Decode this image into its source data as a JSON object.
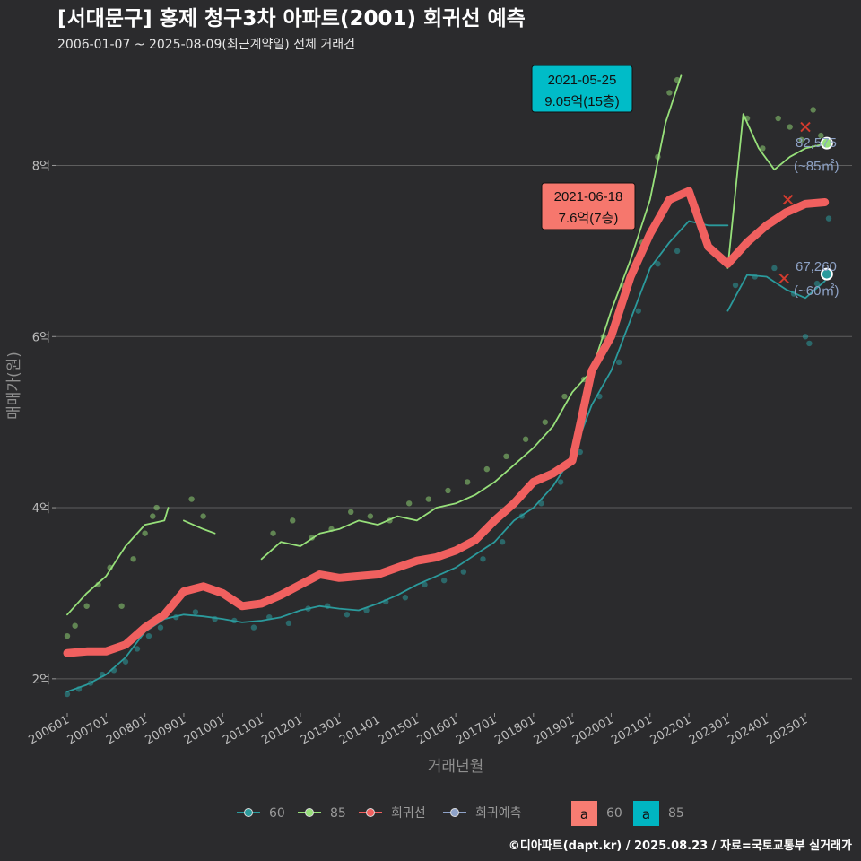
{
  "chart_data": {
    "type": "line",
    "title": "[서대문구] 홍제 청구3차 아파트(2001) 회귀선 예측",
    "subtitle": "2006-01-07 ~ 2025-08-09(최근계약일) 전체 거래건",
    "xlabel": "거래년월",
    "ylabel": "매매가(원)",
    "ylim": [
      1.6,
      9.2
    ],
    "y_ticks": [
      {
        "value": 2,
        "label": "2억"
      },
      {
        "value": 4,
        "label": "4억"
      },
      {
        "value": 6,
        "label": "6억"
      },
      {
        "value": 8,
        "label": "8억"
      }
    ],
    "x_ticks": [
      {
        "year": 2006.0,
        "label": "200601"
      },
      {
        "year": 2007.0,
        "label": "200701"
      },
      {
        "year": 2008.0,
        "label": "200801"
      },
      {
        "year": 2009.0,
        "label": "200901"
      },
      {
        "year": 2010.0,
        "label": "201001"
      },
      {
        "year": 2011.0,
        "label": "201101"
      },
      {
        "year": 2012.0,
        "label": "201201"
      },
      {
        "year": 2013.0,
        "label": "201301"
      },
      {
        "year": 2014.0,
        "label": "201401"
      },
      {
        "year": 2015.0,
        "label": "201501"
      },
      {
        "year": 2016.0,
        "label": "201601"
      },
      {
        "year": 2017.0,
        "label": "201701"
      },
      {
        "year": 2018.0,
        "label": "201801"
      },
      {
        "year": 2019.0,
        "label": "201901"
      },
      {
        "year": 2020.0,
        "label": "202001"
      },
      {
        "year": 2021.0,
        "label": "202101"
      },
      {
        "year": 2022.0,
        "label": "202201"
      },
      {
        "year": 2023.0,
        "label": "202301"
      },
      {
        "year": 2024.0,
        "label": "202401"
      },
      {
        "year": 2025.0,
        "label": "202501"
      }
    ],
    "xlim": [
      2005.7,
      2026.2
    ],
    "colors": {
      "s60": "#2b9a9c",
      "s85": "#97e07a",
      "regression": "#f0605f",
      "forecast": "#8ea2c8",
      "grid": "#5e5e5e"
    },
    "series": [
      {
        "name": "60",
        "key": "s60",
        "points": [
          [
            2006.0,
            1.85
          ],
          [
            2006.5,
            1.93
          ],
          [
            2007.0,
            2.05
          ],
          [
            2007.5,
            2.25
          ],
          [
            2008.0,
            2.55
          ],
          [
            2008.5,
            2.7
          ],
          [
            2009.0,
            2.75
          ],
          [
            2009.5,
            2.73
          ],
          [
            2010.0,
            2.7
          ],
          [
            2010.5,
            2.66
          ],
          [
            2011.0,
            2.68
          ],
          [
            2011.5,
            2.72
          ],
          [
            2012.0,
            2.8
          ],
          [
            2012.5,
            2.85
          ],
          [
            2013.0,
            2.82
          ],
          [
            2013.5,
            2.8
          ],
          [
            2014.0,
            2.88
          ],
          [
            2014.5,
            2.98
          ],
          [
            2015.0,
            3.1
          ],
          [
            2015.5,
            3.2
          ],
          [
            2016.0,
            3.3
          ],
          [
            2016.5,
            3.45
          ],
          [
            2017.0,
            3.6
          ],
          [
            2017.5,
            3.85
          ],
          [
            2018.0,
            4.0
          ],
          [
            2018.5,
            4.25
          ],
          [
            2019.0,
            4.6
          ],
          [
            2019.5,
            5.2
          ],
          [
            2020.0,
            5.6
          ],
          [
            2020.5,
            6.2
          ],
          [
            2021.0,
            6.8
          ],
          [
            2021.5,
            7.1
          ],
          [
            2022.0,
            7.35
          ],
          [
            2022.5,
            7.3
          ],
          [
            2023.0,
            7.3
          ]
        ]
      },
      {
        "name": "60",
        "key": "s60",
        "points": [
          [
            2023.0,
            6.3
          ],
          [
            2023.5,
            6.72
          ],
          [
            2024.0,
            6.7
          ],
          [
            2024.5,
            6.55
          ],
          [
            2025.0,
            6.45
          ],
          [
            2025.5,
            6.65
          ]
        ]
      },
      {
        "name": "85",
        "key": "s85",
        "points": [
          [
            2006.0,
            2.75
          ],
          [
            2006.5,
            3.0
          ],
          [
            2007.0,
            3.2
          ],
          [
            2007.5,
            3.55
          ],
          [
            2008.0,
            3.8
          ],
          [
            2008.5,
            3.85
          ],
          [
            2008.6,
            4.0
          ]
        ]
      },
      {
        "name": "85",
        "key": "s85",
        "points": [
          [
            2009.0,
            3.85
          ],
          [
            2009.5,
            3.75
          ],
          [
            2009.8,
            3.7
          ]
        ]
      },
      {
        "name": "85",
        "key": "s85",
        "points": [
          [
            2011.0,
            3.4
          ],
          [
            2011.5,
            3.6
          ],
          [
            2012.0,
            3.55
          ],
          [
            2012.5,
            3.7
          ],
          [
            2013.0,
            3.75
          ],
          [
            2013.5,
            3.85
          ],
          [
            2014.0,
            3.8
          ],
          [
            2014.5,
            3.9
          ],
          [
            2015.0,
            3.85
          ],
          [
            2015.5,
            4.0
          ],
          [
            2016.0,
            4.05
          ],
          [
            2016.5,
            4.15
          ],
          [
            2017.0,
            4.3
          ],
          [
            2017.5,
            4.5
          ],
          [
            2018.0,
            4.7
          ],
          [
            2018.5,
            4.95
          ],
          [
            2019.0,
            5.35
          ],
          [
            2019.5,
            5.6
          ],
          [
            2020.0,
            6.3
          ],
          [
            2020.5,
            6.9
          ],
          [
            2021.0,
            7.6
          ],
          [
            2021.4,
            8.5
          ],
          [
            2021.8,
            9.05
          ]
        ]
      },
      {
        "name": "85",
        "key": "s85",
        "points": [
          [
            2023.0,
            6.8
          ],
          [
            2023.4,
            8.6
          ],
          [
            2023.8,
            8.2
          ],
          [
            2024.2,
            7.95
          ],
          [
            2024.6,
            8.1
          ],
          [
            2025.0,
            8.2
          ],
          [
            2025.5,
            8.25
          ]
        ]
      },
      {
        "name": "회귀선",
        "key": "regression",
        "points": [
          [
            2006.0,
            2.3
          ],
          [
            2006.5,
            2.32
          ],
          [
            2007.0,
            2.32
          ],
          [
            2007.5,
            2.4
          ],
          [
            2008.0,
            2.6
          ],
          [
            2008.5,
            2.75
          ],
          [
            2009.0,
            3.02
          ],
          [
            2009.5,
            3.08
          ],
          [
            2010.0,
            3.0
          ],
          [
            2010.5,
            2.85
          ],
          [
            2011.0,
            2.88
          ],
          [
            2011.5,
            2.98
          ],
          [
            2012.0,
            3.1
          ],
          [
            2012.5,
            3.22
          ],
          [
            2013.0,
            3.18
          ],
          [
            2013.5,
            3.2
          ],
          [
            2014.0,
            3.22
          ],
          [
            2014.5,
            3.3
          ],
          [
            2015.0,
            3.38
          ],
          [
            2015.5,
            3.42
          ],
          [
            2016.0,
            3.5
          ],
          [
            2016.5,
            3.62
          ],
          [
            2017.0,
            3.85
          ],
          [
            2017.5,
            4.05
          ],
          [
            2018.0,
            4.3
          ],
          [
            2018.5,
            4.4
          ],
          [
            2019.0,
            4.55
          ],
          [
            2019.5,
            5.6
          ],
          [
            2020.0,
            6.0
          ],
          [
            2020.5,
            6.7
          ],
          [
            2021.0,
            7.2
          ],
          [
            2021.5,
            7.6
          ],
          [
            2022.0,
            7.7
          ],
          [
            2022.5,
            7.05
          ],
          [
            2023.0,
            6.85
          ],
          [
            2023.5,
            7.1
          ],
          [
            2024.0,
            7.3
          ],
          [
            2024.5,
            7.45
          ],
          [
            2025.0,
            7.55
          ],
          [
            2025.5,
            7.57
          ]
        ]
      }
    ],
    "scatter_60": [
      [
        2006.0,
        1.82
      ],
      [
        2006.3,
        1.88
      ],
      [
        2006.6,
        1.95
      ],
      [
        2006.9,
        2.05
      ],
      [
        2007.2,
        2.1
      ],
      [
        2007.5,
        2.2
      ],
      [
        2007.8,
        2.35
      ],
      [
        2008.1,
        2.5
      ],
      [
        2008.4,
        2.6
      ],
      [
        2008.8,
        2.72
      ],
      [
        2009.3,
        2.78
      ],
      [
        2009.8,
        2.7
      ],
      [
        2010.3,
        2.68
      ],
      [
        2010.8,
        2.6
      ],
      [
        2011.2,
        2.72
      ],
      [
        2011.7,
        2.65
      ],
      [
        2012.2,
        2.82
      ],
      [
        2012.7,
        2.85
      ],
      [
        2013.2,
        2.75
      ],
      [
        2013.7,
        2.8
      ],
      [
        2014.2,
        2.9
      ],
      [
        2014.7,
        2.95
      ],
      [
        2015.2,
        3.1
      ],
      [
        2015.7,
        3.15
      ],
      [
        2016.2,
        3.25
      ],
      [
        2016.7,
        3.4
      ],
      [
        2017.2,
        3.6
      ],
      [
        2017.7,
        3.9
      ],
      [
        2018.2,
        4.05
      ],
      [
        2018.7,
        4.3
      ],
      [
        2019.2,
        4.65
      ],
      [
        2019.7,
        5.3
      ],
      [
        2020.2,
        5.7
      ],
      [
        2020.7,
        6.3
      ],
      [
        2021.2,
        6.85
      ],
      [
        2021.7,
        7.0
      ],
      [
        2023.2,
        6.6
      ],
      [
        2023.7,
        6.7
      ],
      [
        2024.2,
        6.8
      ],
      [
        2024.7,
        6.5
      ],
      [
        2025.0,
        6.0
      ],
      [
        2025.1,
        5.92
      ],
      [
        2025.3,
        6.62
      ],
      [
        2025.6,
        7.38
      ]
    ],
    "scatter_85": [
      [
        2006.0,
        2.5
      ],
      [
        2006.2,
        2.62
      ],
      [
        2006.5,
        2.85
      ],
      [
        2006.8,
        3.1
      ],
      [
        2007.1,
        3.3
      ],
      [
        2007.4,
        2.85
      ],
      [
        2007.7,
        3.4
      ],
      [
        2008.0,
        3.7
      ],
      [
        2008.2,
        3.9
      ],
      [
        2008.3,
        4.0
      ],
      [
        2009.2,
        4.1
      ],
      [
        2009.5,
        3.9
      ],
      [
        2011.3,
        3.7
      ],
      [
        2011.8,
        3.85
      ],
      [
        2012.3,
        3.65
      ],
      [
        2012.8,
        3.75
      ],
      [
        2013.3,
        3.95
      ],
      [
        2013.8,
        3.9
      ],
      [
        2014.3,
        3.85
      ],
      [
        2014.8,
        4.05
      ],
      [
        2015.3,
        4.1
      ],
      [
        2015.8,
        4.2
      ],
      [
        2016.3,
        4.3
      ],
      [
        2016.8,
        4.45
      ],
      [
        2017.3,
        4.6
      ],
      [
        2017.8,
        4.8
      ],
      [
        2018.3,
        5.0
      ],
      [
        2018.8,
        5.3
      ],
      [
        2019.3,
        5.5
      ],
      [
        2019.8,
        6.0
      ],
      [
        2020.3,
        6.6
      ],
      [
        2020.8,
        7.1
      ],
      [
        2021.2,
        8.1
      ],
      [
        2021.5,
        8.85
      ],
      [
        2021.7,
        9.0
      ],
      [
        2023.5,
        8.55
      ],
      [
        2023.9,
        8.2
      ],
      [
        2024.3,
        8.55
      ],
      [
        2024.6,
        8.45
      ],
      [
        2024.9,
        8.3
      ],
      [
        2025.2,
        8.65
      ],
      [
        2025.4,
        8.35
      ]
    ],
    "annotations": [
      {
        "date": "2021-05-25",
        "price": "9.05억(15층)",
        "series": "85",
        "x": 2021.4,
        "y": 9.05
      },
      {
        "date": "2021-06-18",
        "price": "7.6억(7층)",
        "series": "60",
        "x": 2021.45,
        "y": 7.6
      }
    ],
    "forecast_points": [
      {
        "series": "85",
        "x": 2025.55,
        "y": 8.26,
        "value_label": "82,575",
        "area_label": "(~85㎡)"
      },
      {
        "series": "60",
        "x": 2025.55,
        "y": 6.73,
        "value_label": "67,260",
        "area_label": "(~60㎡)"
      }
    ],
    "markers_x": [
      [
        2025.0,
        8.45
      ],
      [
        2024.45,
        6.68
      ],
      [
        2024.55,
        7.6
      ]
    ]
  },
  "legend": {
    "items": [
      {
        "label": "60",
        "color": "#2b9a9c"
      },
      {
        "label": "85",
        "color": "#97e07a"
      },
      {
        "label": "회귀선",
        "color": "#f0605f"
      },
      {
        "label": "회귀예측",
        "color": "#8ea2c8"
      }
    ],
    "box_items": [
      {
        "glyph": "a",
        "label": "60",
        "color": "#f77c72"
      },
      {
        "glyph": "a",
        "label": "85",
        "color": "#00b5c2"
      }
    ]
  },
  "footer": "©디아파트(dapt.kr) / 2025.08.23 / 자료=국토교통부 실거래가"
}
